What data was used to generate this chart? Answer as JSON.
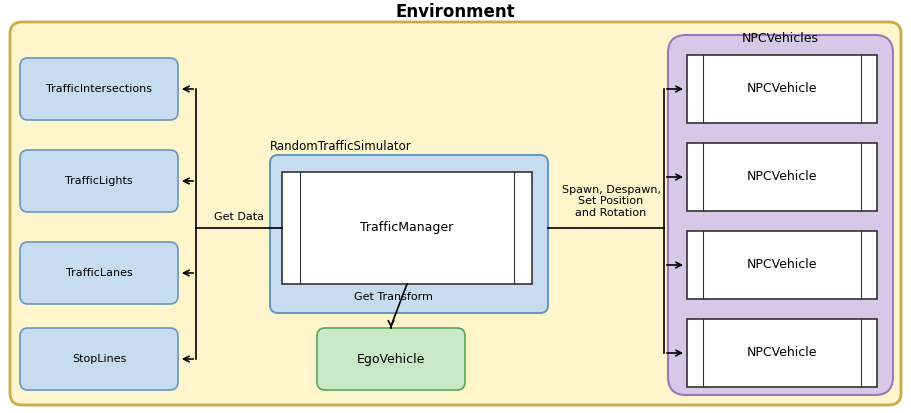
{
  "title": "Environment",
  "title_fontsize": 12,
  "title_fontweight": "bold",
  "bg_color": "#FFF5CC",
  "bg_edgecolor": "#CCAA44",
  "npc_group_color": "#D8C8E8",
  "npc_group_edgecolor": "#9977BB",
  "npc_group_label": "NPCVehicles",
  "rts_color": "#C8DCF0",
  "rts_edgecolor": "#6699BB",
  "rts_label": "RandomTrafficSimulator",
  "tm_color": "#FFFFFF",
  "tm_label": "TrafficManager",
  "left_box_color": "#C8DCF0",
  "left_box_edgecolor": "#6699BB",
  "left_boxes": [
    {
      "label": "TrafficIntersections"
    },
    {
      "label": "TrafficLights"
    },
    {
      "label": "TrafficLanes"
    },
    {
      "label": "StopLines"
    }
  ],
  "npc_box_color": "#FFFFFF",
  "npc_box_edgecolor": "#333333",
  "npc_boxes": [
    {
      "label": "NPCVehicle"
    },
    {
      "label": "NPCVehicle"
    },
    {
      "label": "NPCVehicle"
    },
    {
      "label": "NPCVehicle"
    }
  ],
  "ego_color": "#C8E8C8",
  "ego_edgecolor": "#55AA55",
  "ego_label": "EgoVehicle",
  "get_data_label": "Get Data",
  "get_transform_label": "Get Transform",
  "spawn_label": "Spawn, Despawn,\nSet Position\nand Rotation",
  "arrow_color": "black",
  "line_color": "black"
}
